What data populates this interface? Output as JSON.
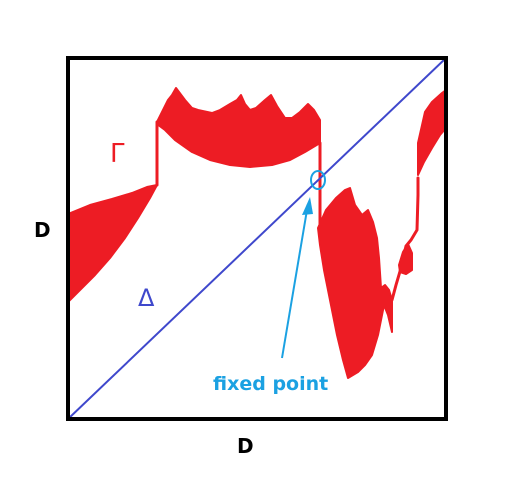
{
  "labels": {
    "x_axis": "D",
    "y_axis": "D",
    "graph": "Γ",
    "diagonal": "Δ",
    "annotation": "fixed point"
  },
  "colors": {
    "frame": "#000000",
    "graph": "#ed1c24",
    "diagonal": "#3f48cc",
    "annotation": "#1ba1e2"
  }
}
